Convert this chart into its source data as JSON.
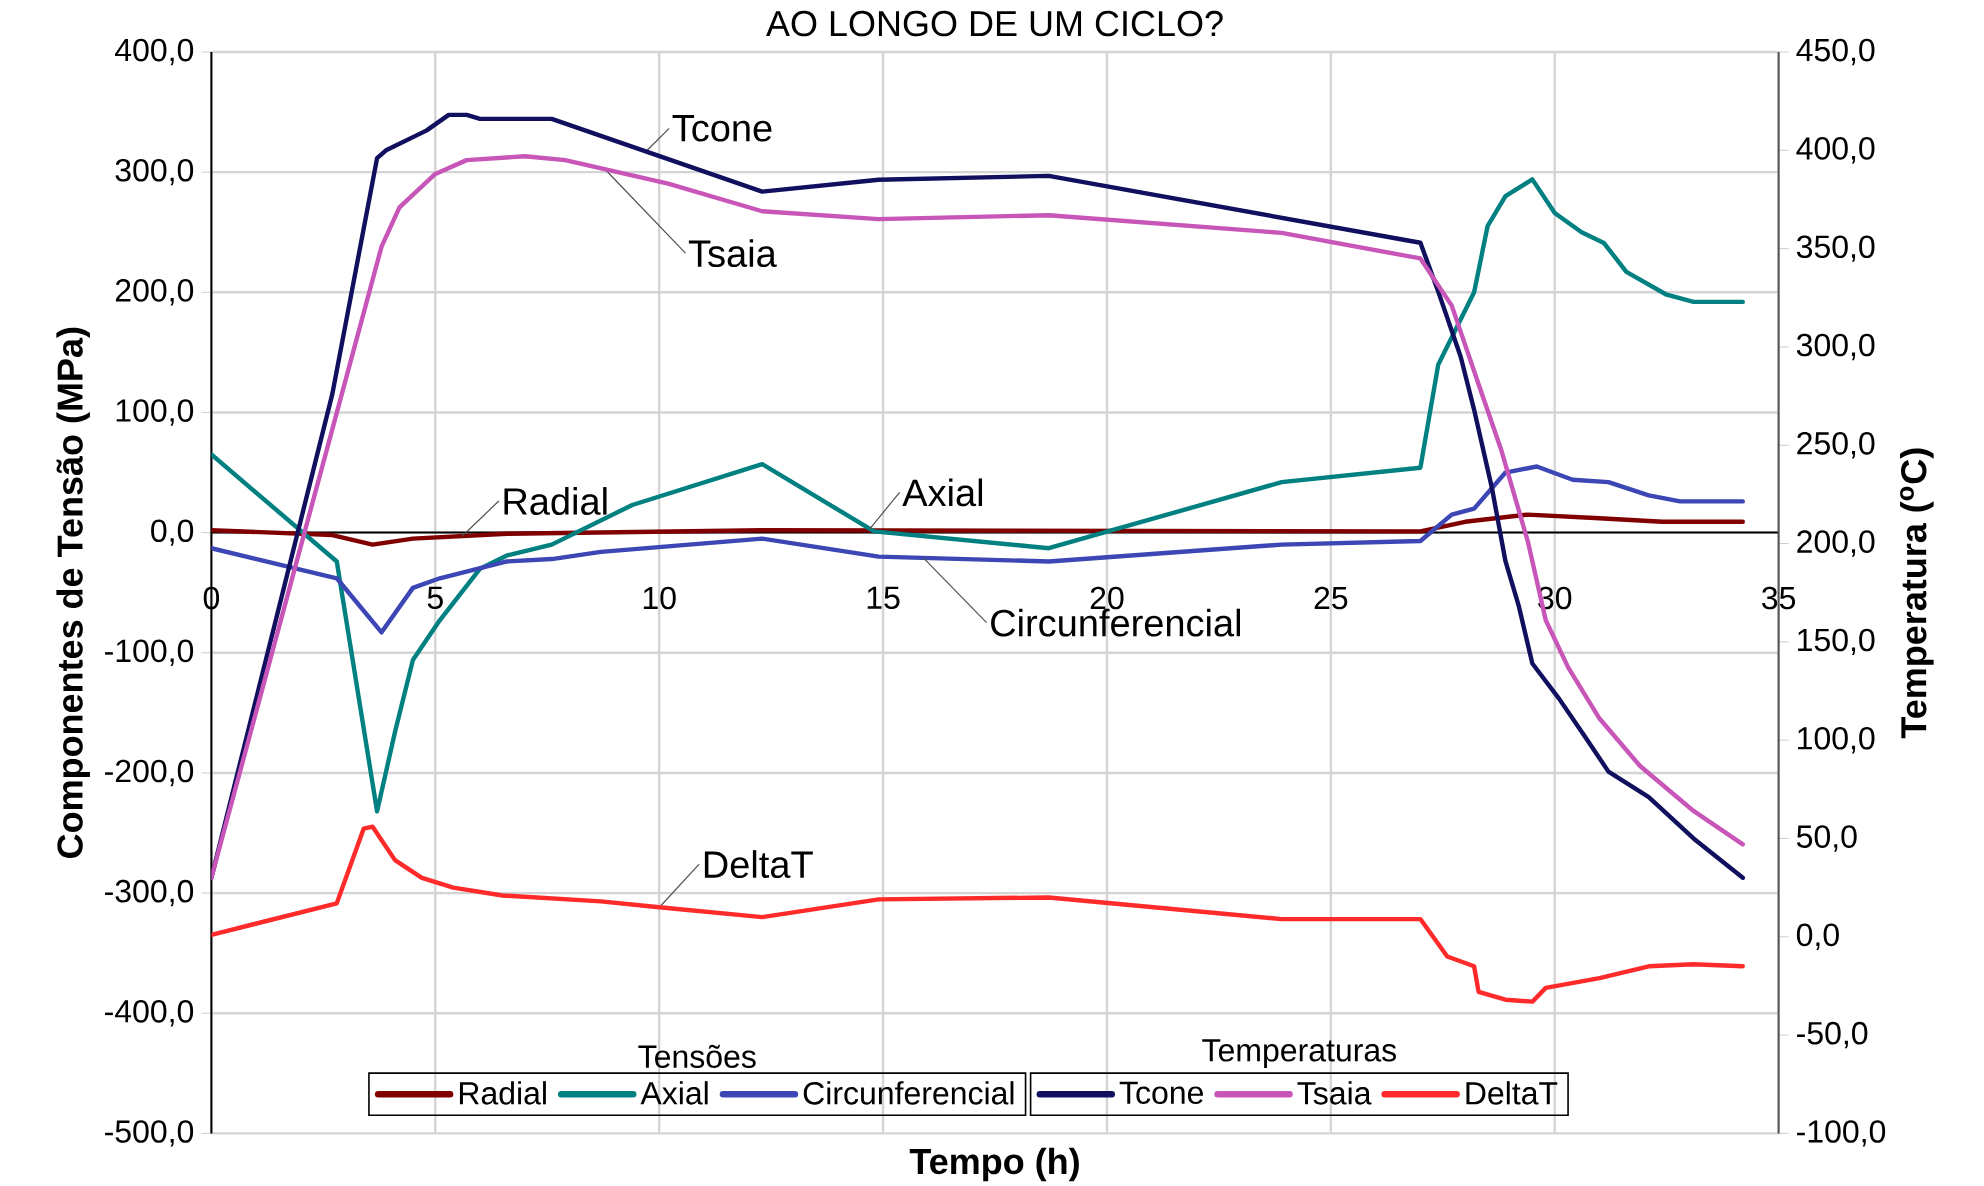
{
  "chart_data": {
    "type": "line",
    "title": "AO LONGO DE UM CICLO?",
    "xlabel": "Tempo (h)",
    "ylabel": "Componentes de Tensão (MPa)",
    "y2label": "Temperatura ($^{o}$C)",
    "xlim": [
      0,
      35
    ],
    "xticks": [
      0,
      5,
      10,
      15,
      20,
      25,
      30,
      35
    ],
    "ylim": [
      -500,
      400
    ],
    "yticks": [
      {
        "value": -500,
        "label": "-500,0"
      },
      {
        "value": -400,
        "label": "-400,0"
      },
      {
        "value": -300,
        "label": "-300,0"
      },
      {
        "value": -200,
        "label": "-200,0"
      },
      {
        "value": -100,
        "label": "-100,0"
      },
      {
        "value": 0,
        "label": "0,0"
      },
      {
        "value": 100,
        "label": "100,0"
      },
      {
        "value": 200,
        "label": "200,0"
      },
      {
        "value": 300,
        "label": "300,0"
      },
      {
        "value": 400,
        "label": "400,0"
      }
    ],
    "y2lim": [
      -100,
      450
    ],
    "y2ticks": [
      {
        "value": -100,
        "label": "-100,0"
      },
      {
        "value": -50,
        "label": "-50,0"
      },
      {
        "value": 0,
        "label": "0,0"
      },
      {
        "value": 50,
        "label": "50,0"
      },
      {
        "value": 100,
        "label": "100,0"
      },
      {
        "value": 150,
        "label": "150,0"
      },
      {
        "value": 200,
        "label": "200,0"
      },
      {
        "value": 250,
        "label": "250,0"
      },
      {
        "value": 300,
        "label": "300,0"
      },
      {
        "value": 350,
        "label": "350,0"
      },
      {
        "value": 400,
        "label": "400,0"
      },
      {
        "value": 450,
        "label": "450,0"
      }
    ],
    "grid": true,
    "legend": "bottom",
    "annotations": [
      {
        "text": "Tcone",
        "x": 9.7,
        "y": 317
      },
      {
        "text": "Tsaia",
        "x": 8.8,
        "y": 302
      },
      {
        "text": "Radial",
        "x": 5.6,
        "y": -3
      },
      {
        "text": "Axial",
        "x": 14.7,
        "y": 3
      },
      {
        "text": "Circunferencial",
        "x": 15.9,
        "y": -21
      },
      {
        "text": "DeltaT",
        "x": 10.0,
        "y": -312
      },
      "Tensões",
      "Temperaturas"
    ],
    "series": [
      {
        "name": "Radial",
        "color": "#800000",
        "x": [
          0,
          2.7,
          3.6,
          4.5,
          6.6,
          12.3,
          27.0,
          28.0,
          29.4,
          31.0,
          32.4,
          34.2
        ],
        "values": [
          2,
          -2,
          -10,
          -5,
          -1,
          2,
          1,
          9,
          15,
          12,
          9,
          9
        ]
      },
      {
        "name": "Axial",
        "color": "#008080",
        "x": [
          0,
          2.8,
          3.7,
          4.1,
          4.5,
          5.1,
          6.0,
          6.6,
          7.6,
          9.4,
          12.3,
          14.8,
          18.7,
          23.9,
          27.0,
          27.4,
          28.2,
          28.5,
          28.9,
          29.5,
          30.0,
          30.6,
          31.1,
          31.6,
          32.5,
          33.1,
          34.2
        ],
        "values": [
          65,
          -24,
          -232,
          -166,
          -106,
          -73,
          -30,
          -19,
          -10,
          23,
          57,
          1,
          -13,
          42,
          54,
          140,
          200,
          255,
          280,
          294,
          266,
          250,
          241,
          217,
          198,
          192,
          192
        ]
      },
      {
        "name": "Circunferencial",
        "color": "#3c46b4",
        "x": [
          0,
          2.8,
          3.8,
          4.5,
          5.1,
          6.6,
          7.6,
          8.7,
          12.3,
          14.9,
          18.7,
          23.9,
          27.0,
          27.7,
          28.2,
          28.9,
          29.6,
          30.4,
          31.2,
          32.1,
          32.8,
          34.2
        ],
        "values": [
          -13,
          -38,
          -83,
          -46,
          -38,
          -24,
          -22,
          -16,
          -5,
          -20,
          -24,
          -10,
          -7,
          15,
          20,
          50,
          55,
          44,
          42,
          31,
          26,
          26
        ]
      },
      {
        "name": "Tcone",
        "color": "#10105e",
        "axis": "y2",
        "x": [
          0,
          2.7,
          3.7,
          3.9,
          4.8,
          5.3,
          5.7,
          6.0,
          7.6,
          12.3,
          14.9,
          18.7,
          27.0,
          27.4,
          27.9,
          28.2,
          28.6,
          28.9,
          29.2,
          29.5,
          30.1,
          30.7,
          31.2,
          32.1,
          33.1,
          34.2
        ],
        "values": [
          30,
          276,
          396,
          400,
          410,
          418,
          418,
          416,
          416,
          379,
          385,
          387,
          353,
          328,
          295,
          268,
          228,
          191,
          168,
          139,
          121,
          101,
          84,
          71,
          50,
          30
        ]
      },
      {
        "name": "Tsaia",
        "color": "#c855b8",
        "axis": "y2",
        "x": [
          0,
          3.8,
          4.2,
          5.0,
          5.7,
          7.0,
          7.9,
          10.2,
          12.3,
          14.9,
          18.7,
          23.9,
          27.0,
          27.7,
          28.3,
          28.8,
          29.4,
          29.8,
          30.3,
          31.0,
          31.9,
          33.1,
          34.2
        ],
        "values": [
          30,
          351,
          371,
          388,
          395,
          397,
          395,
          383,
          369,
          365,
          367,
          358,
          345,
          321,
          281,
          248,
          201,
          161,
          137,
          111,
          87,
          64,
          47
        ]
      },
      {
        "name": "DeltaT",
        "color": "#ff2a2a",
        "axis": "y2",
        "x": [
          0,
          2.8,
          3.4,
          3.6,
          4.1,
          4.7,
          5.4,
          6.5,
          8.7,
          10.0,
          12.3,
          14.9,
          18.7,
          23.9,
          27.0,
          27.6,
          28.2,
          28.3,
          28.9,
          29.5,
          29.8,
          31.0,
          32.1,
          33.1,
          34.2
        ],
        "values": [
          1,
          17,
          55,
          56,
          39,
          30,
          25,
          21,
          18,
          15,
          10,
          19,
          20,
          9,
          9,
          -10,
          -15,
          -28,
          -32,
          -33,
          -26,
          -21,
          -15,
          -14,
          -15
        ]
      }
    ]
  }
}
